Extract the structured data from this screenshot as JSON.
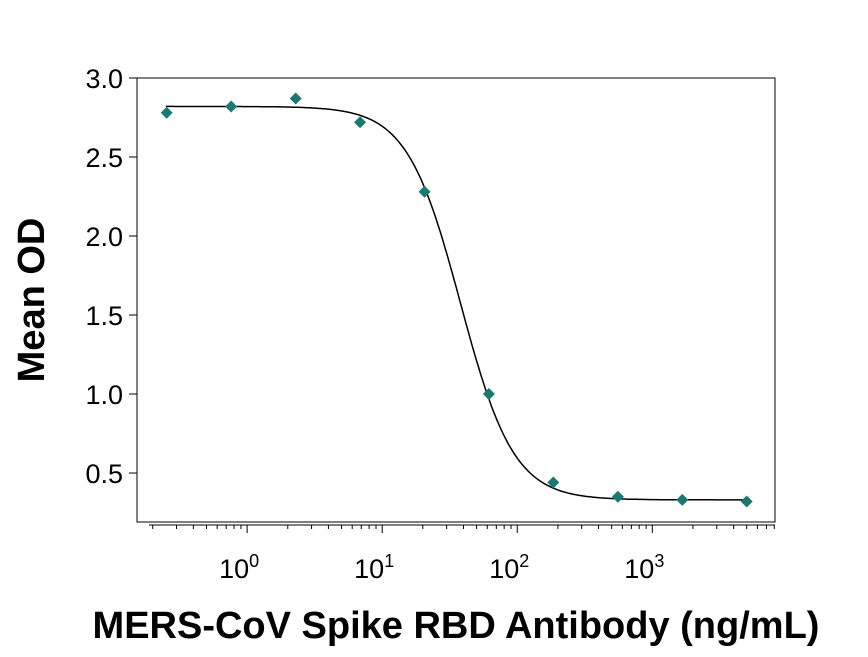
{
  "chart_data": {
    "type": "scatter",
    "title": "",
    "xlabel": "MERS-CoV Spike RBD Antibody (ng/mL)",
    "ylabel": "Mean OD",
    "xscale": "log",
    "xlim": [
      0.153,
      8100
    ],
    "ylim": [
      0.19,
      3.0
    ],
    "yticks": [
      "0.5",
      "1.0",
      "1.5",
      "2.0",
      "2.5",
      "3.0"
    ],
    "ytick_values": [
      0.5,
      1.0,
      1.5,
      2.0,
      2.5,
      3.0
    ],
    "xticks": [
      {
        "base": "10",
        "exp": "0",
        "value": 1
      },
      {
        "base": "10",
        "exp": "1",
        "value": 10
      },
      {
        "base": "10",
        "exp": "2",
        "value": 100
      },
      {
        "base": "10",
        "exp": "3",
        "value": 1000
      }
    ],
    "grid": false,
    "legend": "none",
    "marker_color": "#1a7a72",
    "series": [
      {
        "name": "Mean OD",
        "x": [
          0.254,
          0.762,
          2.29,
          6.86,
          20.6,
          61.7,
          185,
          556,
          1667,
          5000
        ],
        "y": [
          2.78,
          2.82,
          2.87,
          2.72,
          2.28,
          1.0,
          0.44,
          0.35,
          0.33,
          0.32
        ]
      }
    ],
    "fit": {
      "type": "4PL",
      "top": 2.82,
      "bottom": 0.33,
      "ec50": 38,
      "hill": 2.2
    }
  }
}
